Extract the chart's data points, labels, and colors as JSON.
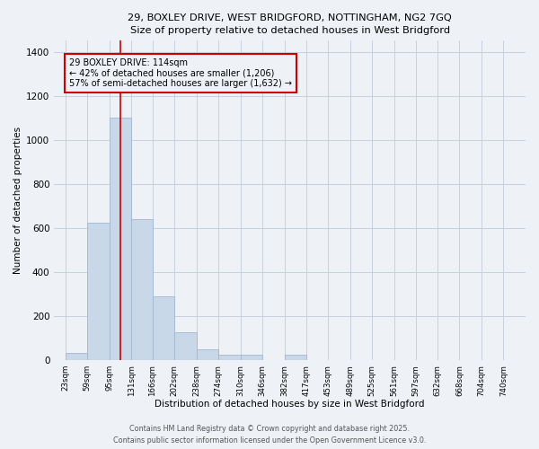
{
  "title1": "29, BOXLEY DRIVE, WEST BRIDGFORD, NOTTINGHAM, NG2 7GQ",
  "title2": "Size of property relative to detached houses in West Bridgford",
  "xlabel": "Distribution of detached houses by size in West Bridgford",
  "ylabel": "Number of detached properties",
  "bin_labels": [
    "23sqm",
    "59sqm",
    "95sqm",
    "131sqm",
    "166sqm",
    "202sqm",
    "238sqm",
    "274sqm",
    "310sqm",
    "346sqm",
    "382sqm",
    "417sqm",
    "453sqm",
    "489sqm",
    "525sqm",
    "561sqm",
    "597sqm",
    "632sqm",
    "668sqm",
    "704sqm",
    "740sqm"
  ],
  "bin_edges": [
    23,
    59,
    95,
    131,
    166,
    202,
    238,
    274,
    310,
    346,
    382,
    417,
    453,
    489,
    525,
    561,
    597,
    632,
    668,
    704,
    740,
    776
  ],
  "bar_heights": [
    35,
    625,
    1100,
    640,
    290,
    125,
    50,
    25,
    25,
    0,
    25,
    0,
    0,
    0,
    0,
    0,
    0,
    0,
    0,
    0,
    0
  ],
  "bar_color": "#c8d8e8",
  "bar_edge_color": "#a0b8d0",
  "vline_x": 114,
  "vline_color": "#cc0000",
  "ylim": [
    0,
    1450
  ],
  "xlim_min": 5,
  "xlim_max": 776,
  "annotation_text": "29 BOXLEY DRIVE: 114sqm\n← 42% of detached houses are smaller (1,206)\n57% of semi-detached houses are larger (1,632) →",
  "annotation_box_color": "#cc0000",
  "footer1": "Contains HM Land Registry data © Crown copyright and database right 2025.",
  "footer2": "Contains public sector information licensed under the Open Government Licence v3.0.",
  "bg_color": "#eef2f7",
  "grid_color": "#c8d0dc"
}
